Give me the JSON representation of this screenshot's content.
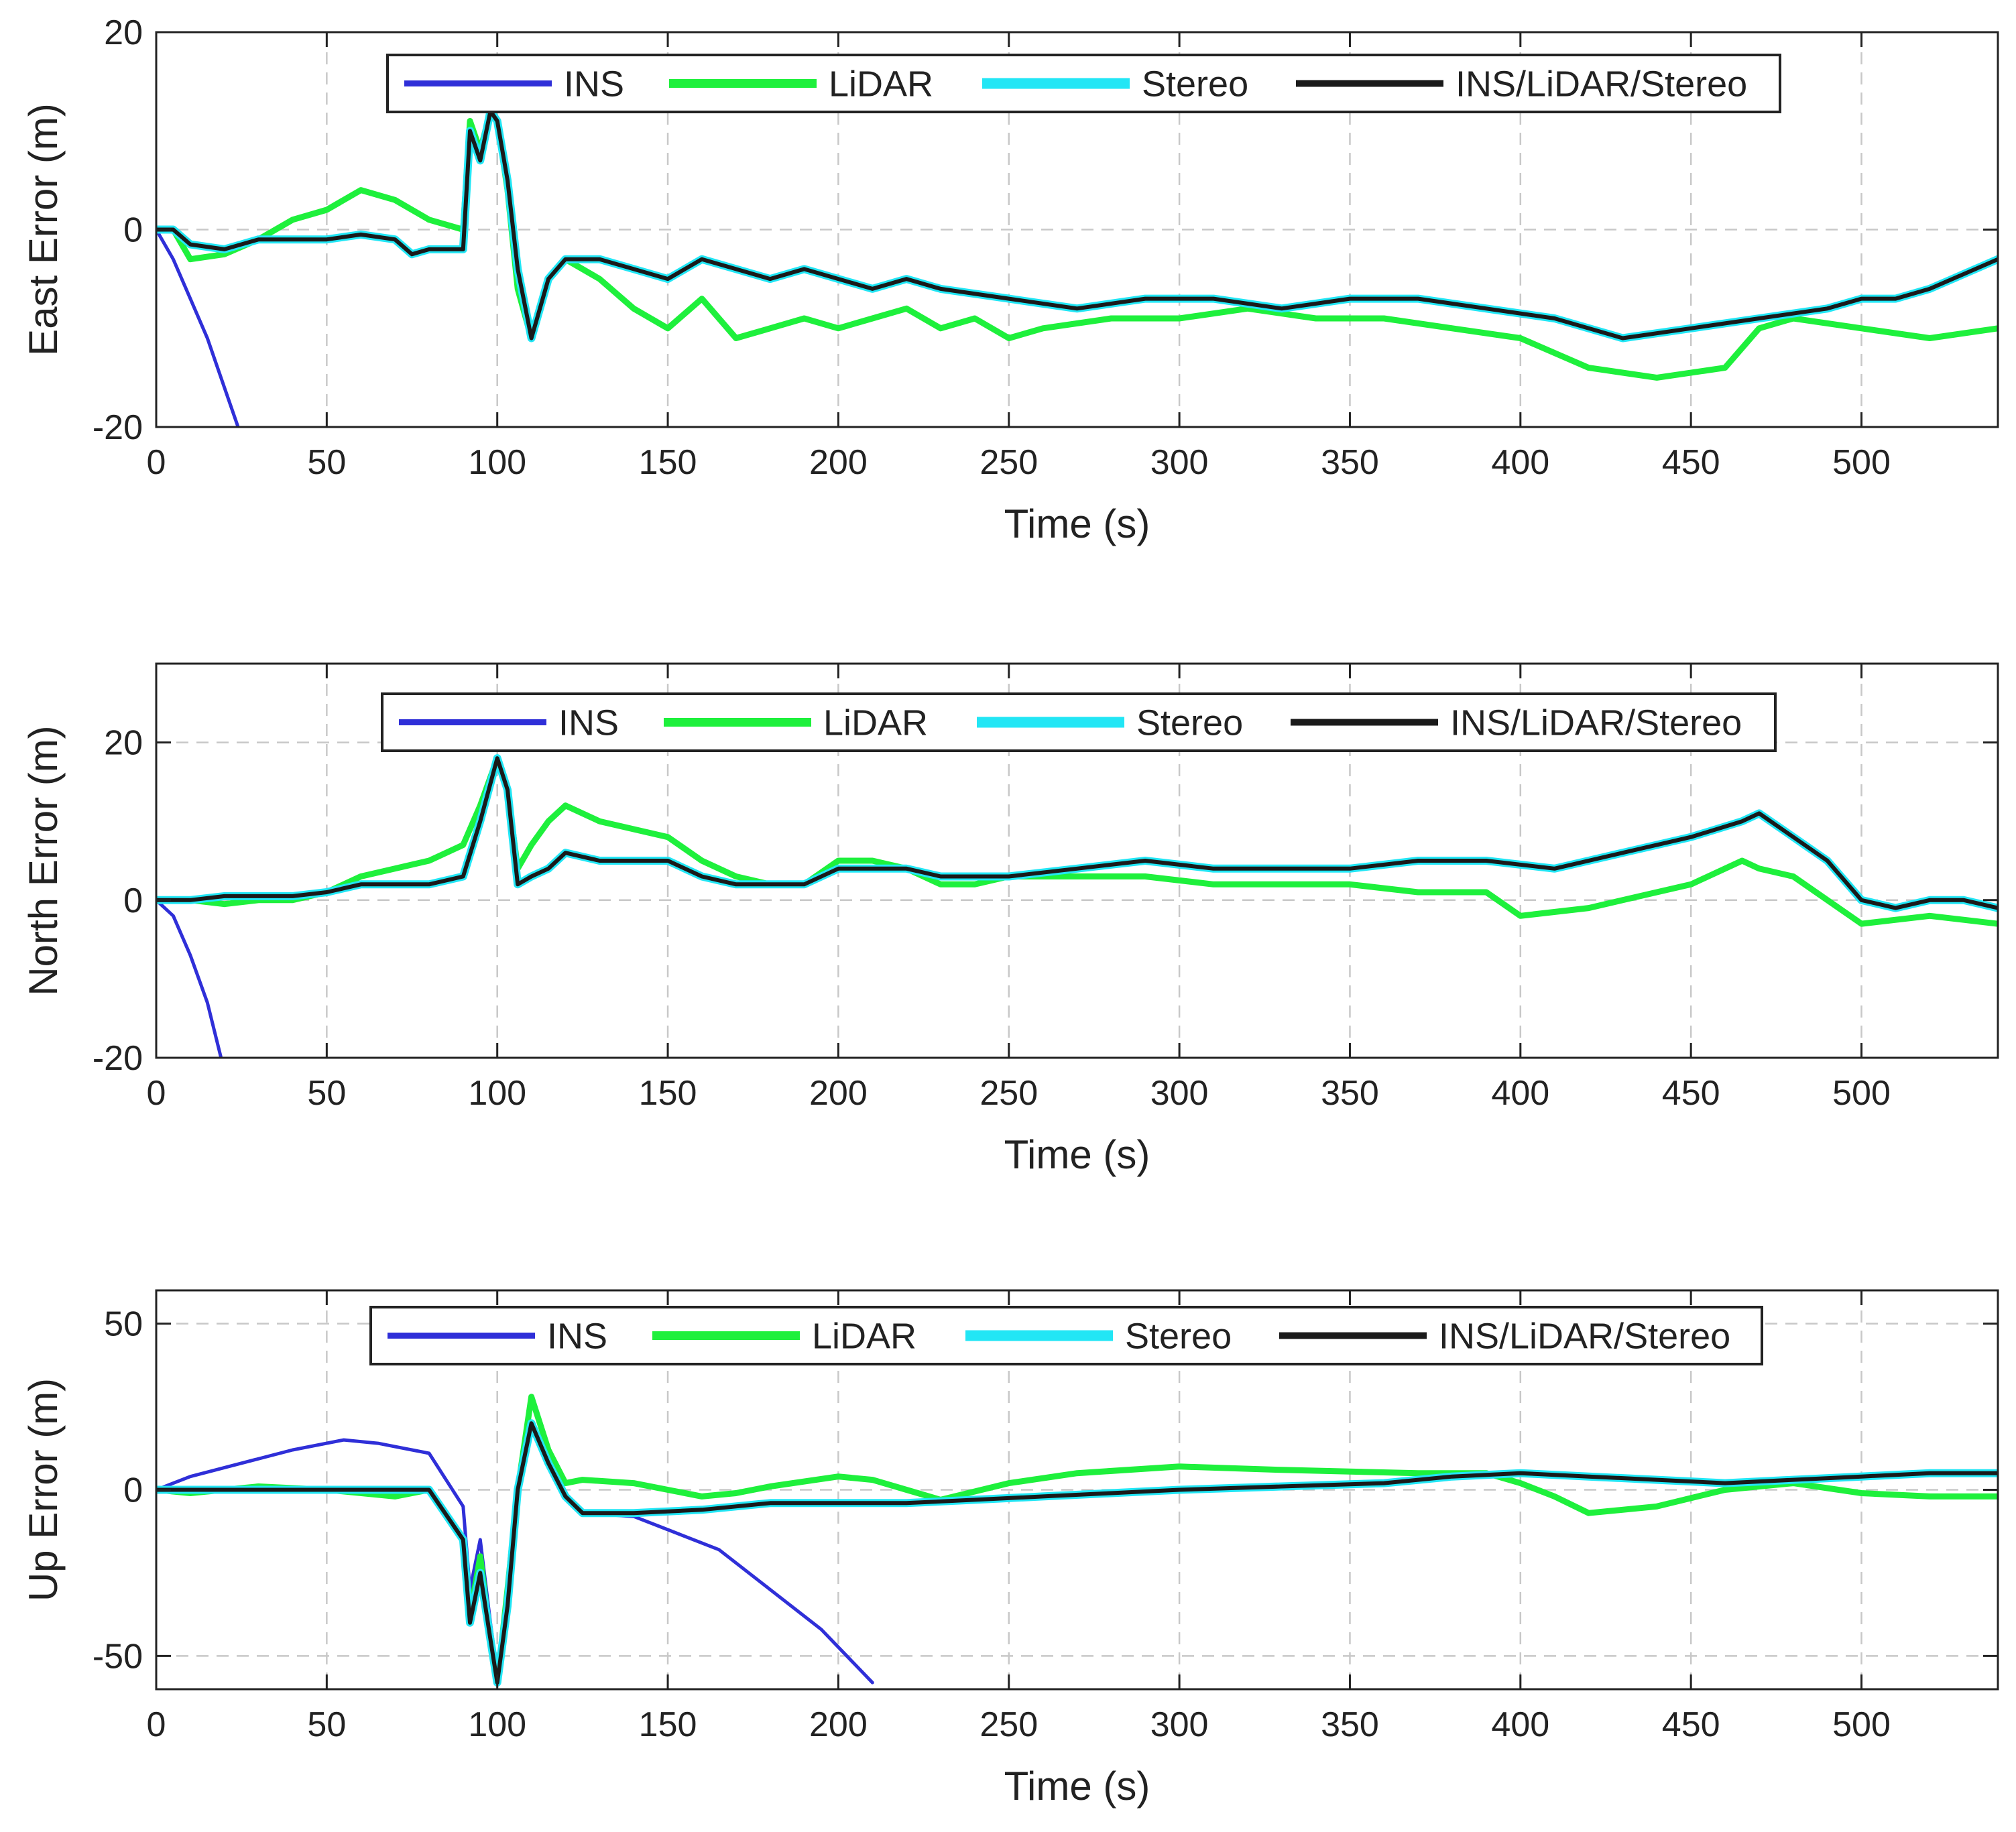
{
  "colors": {
    "INS": "#2f2fd8",
    "LiDAR": "#1ef03c",
    "Stereo": "#22e6f5",
    "INS/LiDAR/Stereo": "#1a1a1a",
    "grid": "#c8c8c8",
    "axes": "#222222"
  },
  "chart_data": [
    {
      "type": "line",
      "ylabel": "East Error (m)",
      "xlabel": "Time (s)",
      "xlim": [
        0,
        540
      ],
      "ylim": [
        -20,
        20
      ],
      "xticks": [
        0,
        50,
        100,
        150,
        200,
        250,
        300,
        350,
        400,
        450,
        500
      ],
      "yticks": [
        -20,
        0,
        20
      ],
      "grid": true,
      "legend": [
        "INS",
        "LiDAR",
        "Stereo",
        "INS/LiDAR/Stereo"
      ],
      "series": [
        {
          "name": "INS",
          "x": [
            0,
            5,
            10,
            15,
            20,
            24
          ],
          "y": [
            0,
            -3,
            -7,
            -11,
            -16,
            -20
          ]
        },
        {
          "name": "LiDAR",
          "x": [
            0,
            5,
            10,
            20,
            30,
            40,
            50,
            60,
            70,
            80,
            90,
            92,
            95,
            98,
            100,
            103,
            106,
            110,
            115,
            120,
            130,
            140,
            150,
            160,
            170,
            180,
            190,
            200,
            210,
            220,
            230,
            240,
            250,
            260,
            280,
            300,
            320,
            340,
            360,
            380,
            400,
            420,
            440,
            460,
            470,
            480,
            500,
            520,
            540
          ],
          "y": [
            0,
            0,
            -3,
            -2.5,
            -1,
            1,
            2,
            4,
            3,
            1,
            0,
            11,
            8,
            12,
            11,
            4,
            -6,
            -11,
            -5,
            -3,
            -5,
            -8,
            -10,
            -7,
            -11,
            -10,
            -9,
            -10,
            -9,
            -8,
            -10,
            -9,
            -11,
            -10,
            -9,
            -9,
            -8,
            -9,
            -9,
            -10,
            -11,
            -14,
            -15,
            -14,
            -10,
            -9,
            -10,
            -11,
            -10
          ]
        },
        {
          "name": "Stereo",
          "x": [
            0,
            5,
            10,
            20,
            30,
            50,
            60,
            70,
            75,
            80,
            85,
            90,
            92,
            95,
            98,
            100,
            103,
            106,
            110,
            115,
            120,
            130,
            140,
            150,
            160,
            170,
            180,
            190,
            200,
            210,
            220,
            230,
            250,
            270,
            290,
            310,
            330,
            350,
            370,
            390,
            410,
            430,
            450,
            470,
            490,
            500,
            510,
            520,
            540
          ],
          "y": [
            0,
            0,
            -1.5,
            -2,
            -1,
            -1,
            -0.5,
            -1,
            -2.5,
            -2,
            -2,
            -2,
            10,
            7,
            12,
            11,
            5,
            -4,
            -11,
            -5,
            -3,
            -3,
            -4,
            -5,
            -3,
            -4,
            -5,
            -4,
            -5,
            -6,
            -5,
            -6,
            -7,
            -8,
            -7,
            -7,
            -8,
            -7,
            -7,
            -8,
            -9,
            -11,
            -10,
            -9,
            -8,
            -7,
            -7,
            -6,
            -3
          ]
        },
        {
          "name": "INS/LiDAR/Stereo",
          "x": [
            0,
            5,
            10,
            20,
            30,
            50,
            60,
            70,
            75,
            80,
            85,
            90,
            92,
            95,
            98,
            100,
            103,
            106,
            110,
            115,
            120,
            130,
            140,
            150,
            160,
            170,
            180,
            190,
            200,
            210,
            220,
            230,
            250,
            270,
            290,
            310,
            330,
            350,
            370,
            390,
            410,
            430,
            450,
            470,
            490,
            500,
            510,
            520,
            540
          ],
          "y": [
            0,
            0,
            -1.5,
            -2,
            -1,
            -1,
            -0.5,
            -1,
            -2.5,
            -2,
            -2,
            -2,
            10,
            7,
            12,
            11,
            5,
            -4,
            -11,
            -5,
            -3,
            -3,
            -4,
            -5,
            -3,
            -4,
            -5,
            -4,
            -5,
            -6,
            -5,
            -6,
            -7,
            -8,
            -7,
            -7,
            -8,
            -7,
            -7,
            -8,
            -9,
            -11,
            -10,
            -9,
            -8,
            -7,
            -7,
            -6,
            -3
          ]
        }
      ]
    },
    {
      "type": "line",
      "ylabel": "North Error (m)",
      "xlabel": "Time (s)",
      "xlim": [
        0,
        540
      ],
      "ylim": [
        -20,
        30
      ],
      "xticks": [
        0,
        50,
        100,
        150,
        200,
        250,
        300,
        350,
        400,
        450,
        500
      ],
      "yticks": [
        -20,
        0,
        20
      ],
      "grid": true,
      "legend": [
        "INS",
        "LiDAR",
        "Stereo",
        "INS/LiDAR/Stereo"
      ],
      "series": [
        {
          "name": "INS",
          "x": [
            0,
            5,
            10,
            15,
            19
          ],
          "y": [
            0,
            -2,
            -7,
            -13,
            -20
          ]
        },
        {
          "name": "LiDAR",
          "x": [
            0,
            10,
            20,
            30,
            40,
            50,
            60,
            70,
            80,
            90,
            95,
            100,
            103,
            106,
            110,
            115,
            120,
            130,
            140,
            150,
            160,
            170,
            180,
            190,
            200,
            210,
            220,
            230,
            240,
            250,
            270,
            290,
            310,
            330,
            350,
            370,
            390,
            400,
            420,
            430,
            450,
            465,
            470,
            480,
            500,
            520,
            540
          ],
          "y": [
            0,
            0,
            -0.5,
            0,
            0,
            1,
            3,
            4,
            5,
            7,
            12,
            18,
            14,
            4,
            7,
            10,
            12,
            10,
            9,
            8,
            5,
            3,
            2,
            2,
            5,
            5,
            4,
            2,
            2,
            3,
            3,
            3,
            2,
            2,
            2,
            1,
            1,
            -2,
            -1,
            0,
            2,
            5,
            4,
            3,
            -3,
            -2,
            -3
          ]
        },
        {
          "name": "Stereo",
          "x": [
            0,
            10,
            20,
            30,
            40,
            50,
            60,
            70,
            80,
            90,
            95,
            100,
            103,
            106,
            110,
            115,
            120,
            130,
            140,
            150,
            160,
            170,
            180,
            190,
            200,
            210,
            220,
            230,
            240,
            250,
            270,
            290,
            310,
            330,
            350,
            370,
            390,
            410,
            430,
            450,
            465,
            470,
            480,
            490,
            500,
            510,
            520,
            530,
            540
          ],
          "y": [
            0,
            0,
            0.5,
            0.5,
            0.5,
            1,
            2,
            2,
            2,
            3,
            10,
            18,
            14,
            2,
            3,
            4,
            6,
            5,
            5,
            5,
            3,
            2,
            2,
            2,
            4,
            4,
            4,
            3,
            3,
            3,
            4,
            5,
            4,
            4,
            4,
            5,
            5,
            4,
            6,
            8,
            10,
            11,
            8,
            5,
            0,
            -1,
            0,
            0,
            -1
          ]
        },
        {
          "name": "INS/LiDAR/Stereo",
          "x": [
            0,
            10,
            20,
            30,
            40,
            50,
            60,
            70,
            80,
            90,
            95,
            100,
            103,
            106,
            110,
            115,
            120,
            130,
            140,
            150,
            160,
            170,
            180,
            190,
            200,
            210,
            220,
            230,
            240,
            250,
            270,
            290,
            310,
            330,
            350,
            370,
            390,
            410,
            430,
            450,
            465,
            470,
            480,
            490,
            500,
            510,
            520,
            530,
            540
          ],
          "y": [
            0,
            0,
            0.5,
            0.5,
            0.5,
            1,
            2,
            2,
            2,
            3,
            10,
            18,
            14,
            2,
            3,
            4,
            6,
            5,
            5,
            5,
            3,
            2,
            2,
            2,
            4,
            4,
            4,
            3,
            3,
            3,
            4,
            5,
            4,
            4,
            4,
            5,
            5,
            4,
            6,
            8,
            10,
            11,
            8,
            5,
            0,
            -1,
            0,
            0,
            -1
          ]
        }
      ]
    },
    {
      "type": "line",
      "ylabel": "Up Error (m)",
      "xlabel": "Time (s)",
      "xlim": [
        0,
        540
      ],
      "ylim": [
        -60,
        60
      ],
      "xticks": [
        0,
        50,
        100,
        150,
        200,
        250,
        300,
        350,
        400,
        450,
        500
      ],
      "yticks": [
        -50,
        0,
        50
      ],
      "grid": true,
      "legend": [
        "INS",
        "LiDAR",
        "Stereo",
        "INS/LiDAR/Stereo"
      ],
      "series": [
        {
          "name": "INS",
          "x": [
            0,
            10,
            25,
            40,
            55,
            65,
            75,
            80,
            90,
            92,
            95,
            98,
            100,
            103,
            106,
            110,
            115,
            120,
            125,
            140,
            150,
            165,
            180,
            195,
            210
          ],
          "y": [
            0,
            4,
            8,
            12,
            15,
            14,
            12,
            11,
            -5,
            -30,
            -15,
            -40,
            -55,
            -35,
            0,
            18,
            8,
            -2,
            -7,
            -8,
            -12,
            -18,
            -30,
            -42,
            -58
          ]
        },
        {
          "name": "LiDAR",
          "x": [
            0,
            10,
            20,
            30,
            50,
            70,
            80,
            90,
            92,
            95,
            98,
            100,
            103,
            106,
            110,
            115,
            120,
            125,
            140,
            150,
            160,
            170,
            180,
            200,
            210,
            220,
            230,
            250,
            270,
            300,
            330,
            370,
            390,
            400,
            410,
            420,
            440,
            460,
            480,
            500,
            520,
            540
          ],
          "y": [
            0,
            -1,
            0,
            1,
            0,
            -2,
            0,
            -15,
            -38,
            -20,
            -45,
            -58,
            -30,
            0,
            28,
            12,
            2,
            3,
            2,
            0,
            -2,
            -1,
            1,
            4,
            3,
            0,
            -3,
            2,
            5,
            7,
            6,
            5,
            5,
            2,
            -2,
            -7,
            -5,
            0,
            2,
            -1,
            -2,
            -2
          ]
        },
        {
          "name": "Stereo",
          "x": [
            0,
            10,
            20,
            30,
            50,
            70,
            80,
            90,
            92,
            95,
            98,
            100,
            103,
            106,
            110,
            115,
            120,
            125,
            140,
            160,
            180,
            200,
            220,
            240,
            260,
            280,
            300,
            330,
            360,
            380,
            400,
            420,
            440,
            460,
            480,
            500,
            520,
            540
          ],
          "y": [
            0,
            0,
            0,
            0,
            0,
            0,
            0,
            -15,
            -40,
            -25,
            -45,
            -58,
            -35,
            0,
            20,
            8,
            -2,
            -7,
            -7,
            -6,
            -4,
            -4,
            -4,
            -3,
            -2,
            -1,
            0,
            1,
            2,
            4,
            5,
            4,
            3,
            2,
            3,
            4,
            5,
            5
          ]
        },
        {
          "name": "INS/LiDAR/Stereo",
          "x": [
            0,
            10,
            20,
            30,
            50,
            70,
            80,
            90,
            92,
            95,
            98,
            100,
            103,
            106,
            110,
            115,
            120,
            125,
            140,
            160,
            180,
            200,
            220,
            240,
            260,
            280,
            300,
            330,
            360,
            380,
            400,
            420,
            440,
            460,
            480,
            500,
            520,
            540
          ],
          "y": [
            0,
            0,
            0,
            0,
            0,
            0,
            0,
            -15,
            -40,
            -25,
            -45,
            -58,
            -35,
            0,
            20,
            8,
            -2,
            -7,
            -7,
            -6,
            -4,
            -4,
            -4,
            -3,
            -2,
            -1,
            0,
            1,
            2,
            4,
            5,
            4,
            3,
            2,
            3,
            4,
            5,
            5
          ]
        }
      ]
    }
  ]
}
